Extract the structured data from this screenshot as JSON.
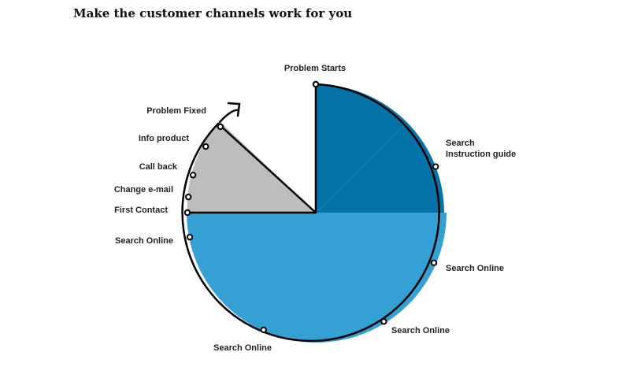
{
  "title": "Make the customer channels work for you",
  "points": [
    {
      "label": "Problem Starts"
    },
    {
      "label": [
        "Search",
        "Instruction guide"
      ]
    },
    {
      "label": "Search Online"
    },
    {
      "label": "Search Online"
    },
    {
      "label": "Search Online"
    },
    {
      "label": "Search Online"
    },
    {
      "label": "First Contact"
    },
    {
      "label": "Change e-mail"
    },
    {
      "label": "Call back"
    },
    {
      "label": "Info product"
    },
    {
      "label": "Problem Fixed"
    }
  ]
}
